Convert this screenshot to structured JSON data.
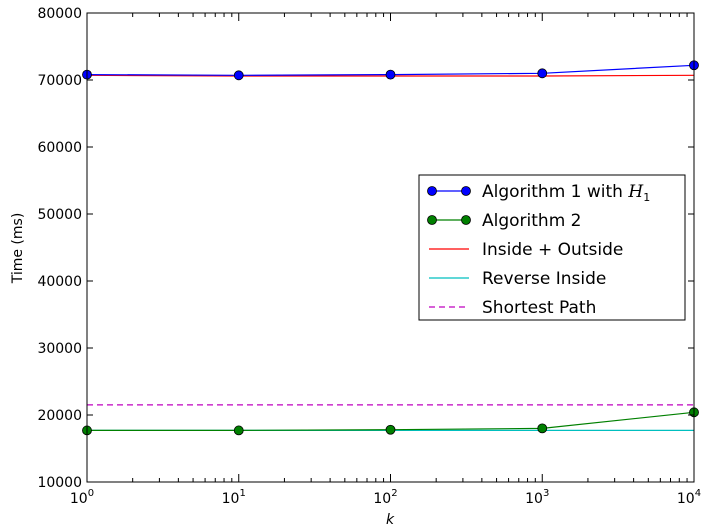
{
  "chart_data": {
    "type": "line",
    "xscale": "log",
    "xlim": [
      1,
      10000
    ],
    "ylim": [
      10000,
      80000
    ],
    "xlabel": "k",
    "ylabel": "Time (ms)",
    "grid": false,
    "legend_position": "right",
    "x": [
      1,
      10,
      100,
      1000,
      10000
    ],
    "x_ticks": [
      1,
      10,
      100,
      1000,
      10000
    ],
    "x_tick_labels": [
      {
        "base": "10",
        "exp": "0"
      },
      {
        "base": "10",
        "exp": "1"
      },
      {
        "base": "10",
        "exp": "2"
      },
      {
        "base": "10",
        "exp": "3"
      },
      {
        "base": "10",
        "exp": "4"
      }
    ],
    "y_ticks": [
      10000,
      20000,
      30000,
      40000,
      50000,
      60000,
      70000,
      80000
    ],
    "y_tick_labels": [
      "10000",
      "20000",
      "30000",
      "40000",
      "50000",
      "60000",
      "70000",
      "80000"
    ],
    "series": [
      {
        "name_text": "Algorithm 1 with ",
        "name_math": "H",
        "name_sub": "1",
        "color": "#0000ff",
        "style": "solid",
        "marker": "circle",
        "values": [
          70800,
          70700,
          70800,
          71000,
          72200
        ]
      },
      {
        "name": "Algorithm 2",
        "color": "#008000",
        "style": "solid",
        "marker": "circle",
        "values": [
          17700,
          17700,
          17800,
          18000,
          20400
        ]
      },
      {
        "name": "Inside + Outside",
        "color": "#ff0000",
        "style": "solid",
        "marker": "none",
        "values": [
          70700,
          70600,
          70600,
          70600,
          70700
        ]
      },
      {
        "name": "Reverse Inside",
        "color": "#00bfbf",
        "style": "solid",
        "marker": "none",
        "values": [
          17700,
          17700,
          17700,
          17700,
          17700
        ]
      },
      {
        "name": "Shortest Path",
        "color": "#bf00bf",
        "style": "dashed",
        "marker": "none",
        "values": [
          21500,
          21500,
          21500,
          21500,
          21500
        ]
      }
    ]
  }
}
